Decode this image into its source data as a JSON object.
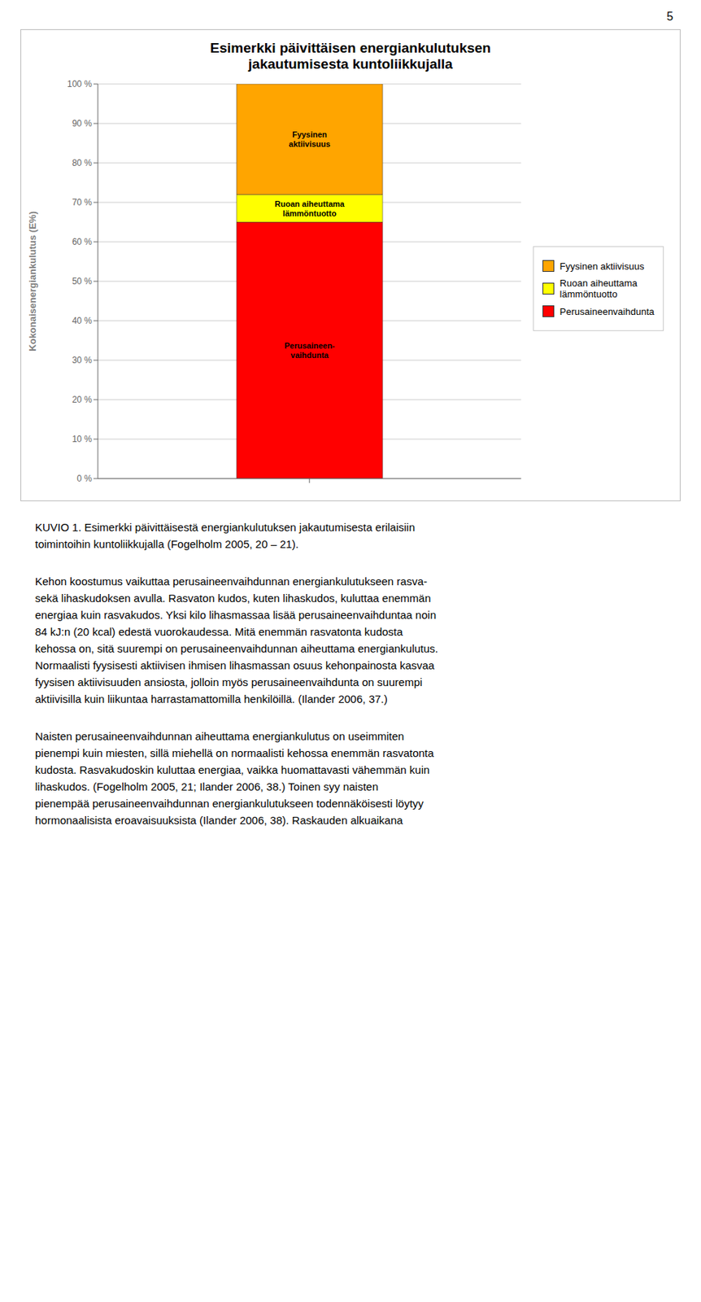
{
  "chart_data": {
    "type": "bar",
    "stacked": true,
    "title": "Esimerkki päivittäisen energiankulutuksen\njakautumisesta kuntoliikkujalla",
    "ylabel": "Kokonaisenergiankulutus (E%)",
    "categories": [
      null
    ],
    "series": [
      {
        "name": "Perusaineenvaihdunta",
        "color": "#FF0000",
        "values": [
          0.65
        ]
      },
      {
        "name": "Ruoan aiheuttama\nlämmöntuotto",
        "color": "#FFFF00",
        "values": [
          0.07
        ]
      },
      {
        "name": "Fyysinen aktiivisuus",
        "color": "#FFA500",
        "values": [
          0.28
        ]
      }
    ],
    "annotations": [
      "Perusaineen-\nvaihdunta",
      "Ruoan aiheuttama\nlämmöntuotto",
      "Fyysinen\naktiivisuus"
    ],
    "ylim": [
      0,
      1.0
    ],
    "yticks": [
      {
        "value": 0.0,
        "label": "0 %"
      },
      {
        "value": 0.1,
        "label": "10 %"
      },
      {
        "value": 0.2,
        "label": "20 %"
      },
      {
        "value": 0.3,
        "label": "30 %"
      },
      {
        "value": 0.4,
        "label": "40 %"
      },
      {
        "value": 0.5,
        "label": "50 %"
      },
      {
        "value": 0.6,
        "label": "60 %"
      },
      {
        "value": 0.7,
        "label": "70 %"
      },
      {
        "value": 0.8,
        "label": "80 %"
      },
      {
        "value": 0.9,
        "label": "90 %"
      },
      {
        "value": 1.0,
        "label": "100 %"
      }
    ],
    "grid": true,
    "legend": "right"
  },
  "page_number": "5",
  "paragraphs": [
    "KUVIO 1. Esimerkki päivittäisestä energiankulutuksen jakautumisesta erilaisiin\ntoimintoihin kuntoliikkujalla (Fogelholm 2005, 20 – 21).",
    "Kehon koostumus vaikuttaa perusaineenvaihdunnan energiankulutukseen rasva-\nsekä lihaskudoksen avulla. Rasvaton kudos, kuten lihaskudos, kuluttaa enemmän\nenergiaa kuin rasvakudos. Yksi kilo lihasmassaa lisää perusaineenvaihduntaa noin\n84 kJ:n (20 kcal) edestä vuorokaudessa. Mitä enemmän rasvatonta kudosta\nkehossa on, sitä suurempi on perusaineenvaihdunnan aiheuttama energiankulutus.\nNormaalisti fyysisesti aktiivisen ihmisen lihasmassan osuus kehonpainosta kasvaa\nfyysisen aktiivisuuden ansiosta, jolloin myös perusaineenvaihdunta on suurempi\naktiivisilla kuin liikuntaa harrastamattomilla henkilöillä. (Ilander 2006, 37.)",
    "Naisten perusaineenvaihdunnan aiheuttama energiankulutus on useimmiten\npienempi kuin miesten, sillä miehellä on normaalisti kehossa enemmän rasvatonta\nkudosta. Rasvakudoskin kuluttaa energiaa, vaikka huomattavasti vähemmän kuin\nlihaskudos. (Fogelholm 2005, 21; Ilander 2006, 38.) Toinen syy naisten\npienempää perusaineenvaihdunnan energiankulutukseen todennäköisesti löytyy\nhormonaalisista eroavaisuuksista (Ilander 2006, 38). Raskauden alkuaikana"
  ]
}
